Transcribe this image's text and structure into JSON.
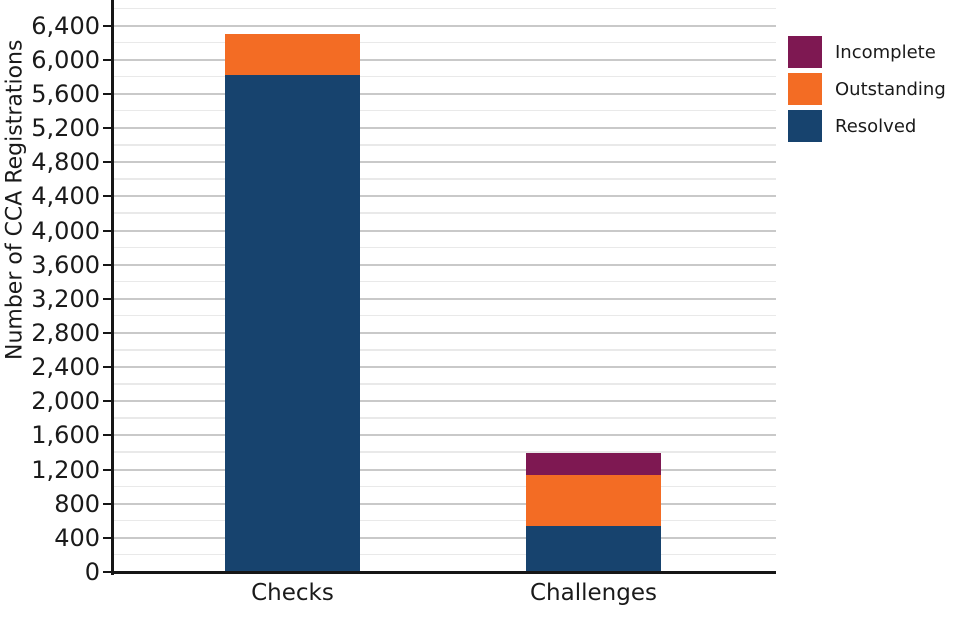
{
  "chart_data": {
    "type": "bar",
    "stacked": true,
    "title": "",
    "xlabel": "",
    "ylabel": "Number of CCA Registrations",
    "categories": [
      "Checks",
      "Challenges"
    ],
    "series": [
      {
        "name": "Resolved",
        "color": "#17436E",
        "values": [
          5820,
          540
        ]
      },
      {
        "name": "Outstanding",
        "color": "#F36C24",
        "values": [
          480,
          600
        ]
      },
      {
        "name": "Incomplete",
        "color": "#7E1852",
        "values": [
          0,
          260
        ]
      }
    ],
    "totals": {
      "Checks": 6300,
      "Challenges": 1400
    },
    "ylim": [
      0,
      6700
    ],
    "ytick_step": 400,
    "minor_gridline_step": 200,
    "gridline_max": 6600,
    "ytick_labels": [
      "0",
      "400",
      "800",
      "1,200",
      "1,600",
      "2,000",
      "2,400",
      "2,800",
      "3,200",
      "3,600",
      "4,000",
      "4,400",
      "4,800",
      "5,200",
      "5,600",
      "6,000",
      "6,400"
    ],
    "grid": true,
    "legend_position": "outside-upper-right",
    "legend_order": [
      "Incomplete",
      "Outstanding",
      "Resolved"
    ],
    "colors": {
      "resolved": "#17436E",
      "outstanding": "#F36C24",
      "incomplete": "#7E1852",
      "major_gridline": "#c9c9c9",
      "minor_gridline": "#e9e9e9",
      "axis_spine": "#161616",
      "text": "#1a1a1a"
    }
  }
}
